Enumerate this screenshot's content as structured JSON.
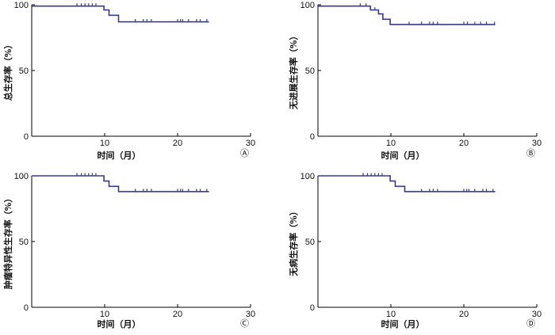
{
  "chart_data": [
    {
      "type": "line",
      "panel_label": "Ⓐ",
      "xlabel": "时间（月）",
      "ylabel": "总生存率（%）",
      "xlim": [
        0,
        30
      ],
      "ylim": [
        0,
        100
      ],
      "x_ticks": [
        "10",
        "20",
        "30"
      ],
      "y_ticks": [
        "0",
        "50",
        "100"
      ],
      "step": [
        [
          0,
          99
        ],
        [
          9.9,
          99
        ],
        [
          9.9,
          96
        ],
        [
          10.6,
          96
        ],
        [
          10.6,
          92
        ],
        [
          11.9,
          92
        ],
        [
          11.9,
          87
        ],
        [
          24.3,
          87
        ]
      ],
      "censor": [
        [
          6.2,
          99
        ],
        [
          6.8,
          99
        ],
        [
          7.3,
          99
        ],
        [
          7.8,
          99
        ],
        [
          8.3,
          99
        ],
        [
          8.8,
          99
        ],
        [
          14.2,
          87
        ],
        [
          15.3,
          87
        ],
        [
          15.8,
          87
        ],
        [
          16.4,
          87
        ],
        [
          20.0,
          87
        ],
        [
          20.4,
          87
        ],
        [
          20.7,
          87
        ],
        [
          21.5,
          87
        ],
        [
          22.6,
          87
        ],
        [
          23.1,
          87
        ],
        [
          24.0,
          87
        ]
      ]
    },
    {
      "type": "line",
      "panel_label": "Ⓑ",
      "xlabel": "时间（月）",
      "ylabel": "无进展生存率（%）",
      "xlim": [
        0,
        30
      ],
      "ylim": [
        0,
        100
      ],
      "x_ticks": [
        "10",
        "20",
        "30"
      ],
      "y_ticks": [
        "0",
        "50",
        "100"
      ],
      "step": [
        [
          0,
          99
        ],
        [
          7.2,
          99
        ],
        [
          7.2,
          96
        ],
        [
          8.3,
          96
        ],
        [
          8.3,
          93
        ],
        [
          8.9,
          93
        ],
        [
          8.9,
          89
        ],
        [
          9.9,
          89
        ],
        [
          9.9,
          85
        ],
        [
          24.3,
          85
        ]
      ],
      "censor": [
        [
          5.8,
          99
        ],
        [
          6.6,
          99
        ],
        [
          7.8,
          96
        ],
        [
          12.5,
          85
        ],
        [
          14.2,
          85
        ],
        [
          15.3,
          85
        ],
        [
          15.8,
          85
        ],
        [
          16.4,
          85
        ],
        [
          20.0,
          85
        ],
        [
          20.5,
          85
        ],
        [
          21.5,
          85
        ],
        [
          22.3,
          85
        ],
        [
          23.1,
          85
        ],
        [
          24.2,
          85
        ]
      ]
    },
    {
      "type": "line",
      "panel_label": "Ⓒ",
      "xlabel": "时间（月）",
      "ylabel": "肿瘤特异性生存率（%）",
      "xlim": [
        0,
        30
      ],
      "ylim": [
        0,
        100
      ],
      "x_ticks": [
        "10",
        "20",
        "30"
      ],
      "y_ticks": [
        "0",
        "50",
        "100"
      ],
      "step": [
        [
          0,
          100
        ],
        [
          9.9,
          100
        ],
        [
          9.9,
          96
        ],
        [
          10.6,
          96
        ],
        [
          10.6,
          92
        ],
        [
          11.9,
          92
        ],
        [
          11.9,
          88
        ],
        [
          24.3,
          88
        ]
      ],
      "censor": [
        [
          6.2,
          100
        ],
        [
          6.8,
          100
        ],
        [
          7.3,
          100
        ],
        [
          7.8,
          100
        ],
        [
          8.3,
          100
        ],
        [
          8.8,
          100
        ],
        [
          14.2,
          88
        ],
        [
          15.3,
          88
        ],
        [
          15.8,
          88
        ],
        [
          16.4,
          88
        ],
        [
          20.0,
          88
        ],
        [
          20.4,
          88
        ],
        [
          20.7,
          88
        ],
        [
          21.5,
          88
        ],
        [
          22.6,
          88
        ],
        [
          23.1,
          88
        ],
        [
          24.0,
          88
        ]
      ]
    },
    {
      "type": "line",
      "panel_label": "Ⓓ",
      "xlabel": "时间（月）",
      "ylabel": "无病生存率（%）",
      "xlim": [
        0,
        30
      ],
      "ylim": [
        0,
        100
      ],
      "x_ticks": [
        "10",
        "20",
        "30"
      ],
      "y_ticks": [
        "0",
        "50",
        "100"
      ],
      "step": [
        [
          0,
          100
        ],
        [
          9.9,
          100
        ],
        [
          9.9,
          96
        ],
        [
          10.6,
          96
        ],
        [
          10.6,
          92
        ],
        [
          11.9,
          92
        ],
        [
          11.9,
          88
        ],
        [
          24.3,
          88
        ]
      ],
      "censor": [
        [
          6.2,
          100
        ],
        [
          6.8,
          100
        ],
        [
          7.3,
          100
        ],
        [
          7.8,
          100
        ],
        [
          8.3,
          100
        ],
        [
          8.8,
          100
        ],
        [
          14.2,
          88
        ],
        [
          15.3,
          88
        ],
        [
          15.8,
          88
        ],
        [
          16.4,
          88
        ],
        [
          20.0,
          88
        ],
        [
          20.4,
          88
        ],
        [
          20.7,
          88
        ],
        [
          21.5,
          88
        ],
        [
          22.6,
          88
        ],
        [
          23.1,
          88
        ],
        [
          24.0,
          88
        ]
      ]
    }
  ]
}
